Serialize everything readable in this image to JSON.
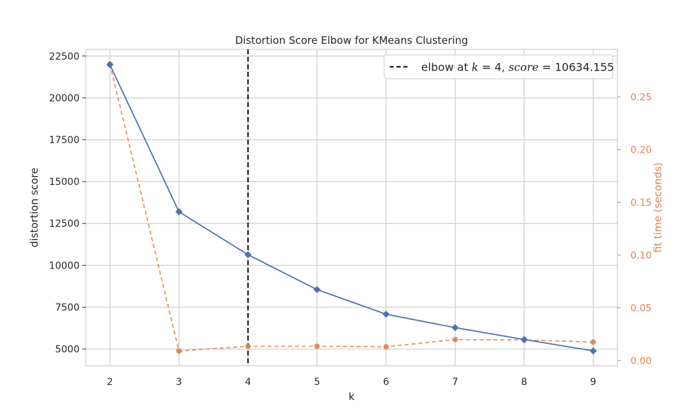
{
  "chart_data": {
    "type": "line",
    "title": "Distortion Score Elbow for KMeans Clustering",
    "xlabel": "k",
    "ylabel": "distortion score",
    "y2label": "fit time (seconds)",
    "x": [
      2,
      3,
      4,
      5,
      6,
      7,
      8,
      9
    ],
    "xlim": [
      1.65,
      9.35
    ],
    "ylim": [
      4000,
      22900
    ],
    "y2lim": [
      -0.005,
      0.295
    ],
    "yticks": [
      5000,
      7500,
      10000,
      12500,
      15000,
      17500,
      20000,
      22500
    ],
    "yticklabels": [
      "5000",
      "7500",
      "10000",
      "12500",
      "15000",
      "17500",
      "20000",
      "22500"
    ],
    "y2ticks": [
      0.0,
      0.05,
      0.1,
      0.15,
      0.2,
      0.25
    ],
    "y2ticklabels": [
      "0.00",
      "0.05",
      "0.10",
      "0.15",
      "0.20",
      "0.25"
    ],
    "xticklabels": [
      "2",
      "3",
      "4",
      "5",
      "6",
      "7",
      "8",
      "9"
    ],
    "series": [
      {
        "name": "distortion score",
        "axis": "left",
        "style": "solid",
        "marker": "diamond",
        "color": "#4c72b0",
        "values": [
          21980,
          13200,
          10634.155,
          8550,
          7080,
          6280,
          5570,
          4890
        ]
      },
      {
        "name": "fit time",
        "axis": "right",
        "style": "dashed",
        "marker": "circle",
        "color": "#dd8452",
        "values": [
          0.281,
          0.009,
          0.0135,
          0.0135,
          0.013,
          0.0198,
          0.0195,
          0.0175
        ]
      }
    ],
    "elbow": {
      "k": 4,
      "score": 10634.155,
      "legend_prefix": "elbow at ",
      "legend_k": "k",
      "legend_eq1": " = 4, ",
      "legend_score": "score",
      "legend_eq2": " = 10634.155"
    },
    "grid": true,
    "legend_position": "top-right",
    "colors": {
      "grid": "#cccccc",
      "axes_edge": "#cccccc",
      "elbow_line": "#000000",
      "left_axis_text": "#262626",
      "right_axis_text": "#dd8452"
    }
  }
}
